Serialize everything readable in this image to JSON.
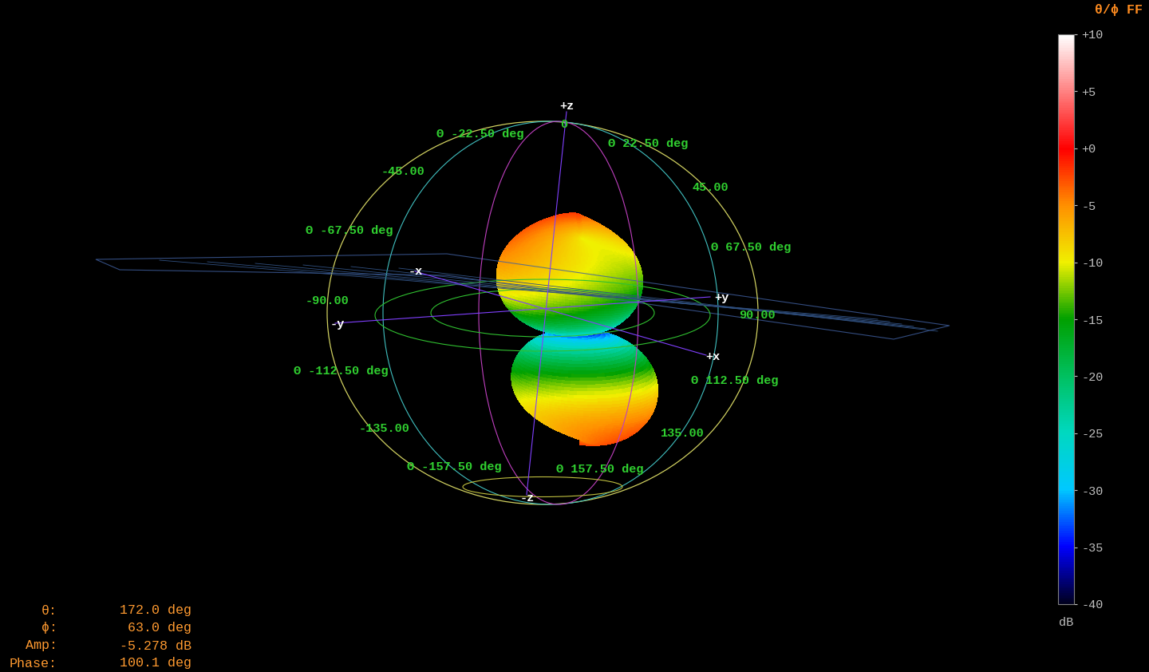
{
  "chart_data": {
    "type": "radiation_pattern_3d",
    "title": "θ/ϕ FF",
    "axis_labels": [
      "+z",
      "-z",
      "+x",
      "-x",
      "+y",
      "-y"
    ],
    "theta_labels": [
      "Θ -22.50 deg",
      "Θ 22.50 deg",
      "Θ -67.50 deg",
      "Θ 67.50 deg",
      "Θ -112.50 deg",
      "Θ 112.50 deg",
      "Θ -157.50 deg",
      "Θ 157.50 deg"
    ],
    "angle_labels": [
      "0",
      "-45.00",
      "45.00",
      "-90.00",
      "90.00",
      "-135.00",
      "135.00"
    ],
    "colorbar": {
      "range": [
        -40,
        10
      ],
      "unit": "dB",
      "ticks": [
        {
          "value": 10,
          "label": "+10"
        },
        {
          "value": 5,
          "label": "+5"
        },
        {
          "value": 0,
          "label": "+0"
        },
        -5,
        -10,
        -15,
        -20,
        -25,
        -30,
        -35,
        -40
      ]
    },
    "readout": [
      [
        "θ:",
        "172.0 deg"
      ],
      [
        "ϕ:",
        "63.0 deg"
      ],
      [
        "Amp:",
        "-5.278 dB"
      ],
      [
        "Phase:",
        "100.1 deg"
      ]
    ]
  }
}
